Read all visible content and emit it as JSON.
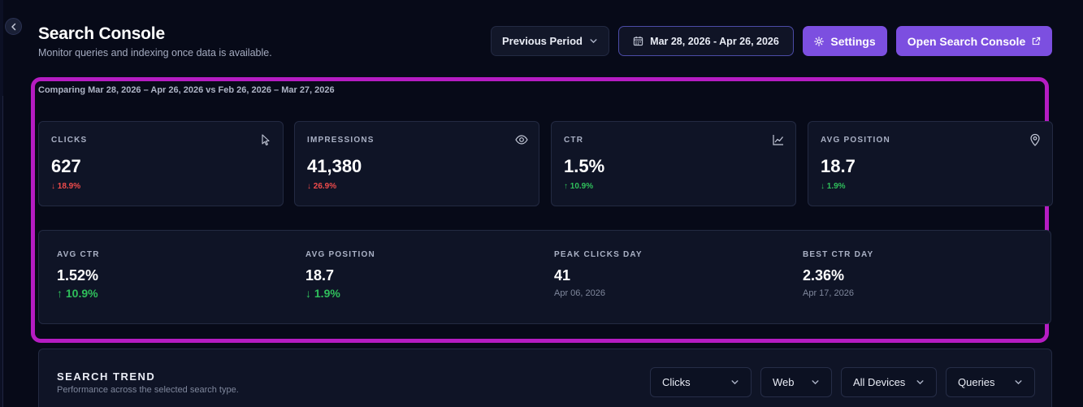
{
  "header": {
    "title": "Search Console",
    "subtitle": "Monitor queries and indexing once data is available."
  },
  "toolbar": {
    "period_label": "Previous Period",
    "date_range": "Mar 28, 2026 - Apr 26, 2026",
    "settings_label": "Settings",
    "open_gsc_label": "Open Search Console"
  },
  "comparison_text": "Comparing Mar 28, 2026 – Apr 26, 2026 vs Feb 26, 2026 – Mar 27, 2026",
  "kpis": [
    {
      "label": "CLICKS",
      "value": "627",
      "change": "↓ 18.9%",
      "direction": "down",
      "icon": "cursor-icon"
    },
    {
      "label": "IMPRESSIONS",
      "value": "41,380",
      "change": "↓ 26.9%",
      "direction": "down",
      "icon": "eye-icon"
    },
    {
      "label": "CTR",
      "value": "1.5%",
      "change": "↑ 10.9%",
      "direction": "up",
      "icon": "line-chart-icon"
    },
    {
      "label": "AVG POSITION",
      "value": "18.7",
      "change": "↓ 1.9%",
      "direction": "up",
      "icon": "map-pin-icon"
    }
  ],
  "summary": {
    "avg_ctr": {
      "label": "AVG CTR",
      "value": "1.52%",
      "change": "↑ 10.9%"
    },
    "avg_position": {
      "label": "AVG POSITION",
      "value": "18.7",
      "change": "↓ 1.9%"
    },
    "peak_clicks": {
      "label": "PEAK CLICKS DAY",
      "value": "41",
      "date": "Apr 06, 2026"
    },
    "best_ctr": {
      "label": "BEST CTR DAY",
      "value": "2.36%",
      "date": "Apr 17, 2026"
    }
  },
  "trend": {
    "title": "SEARCH TREND",
    "subtitle": "Performance across the selected search type.",
    "filters": [
      "Clicks",
      "Web",
      "All Devices",
      "Queries"
    ]
  },
  "colors": {
    "accent": "#7c4fe0",
    "highlight": "#b51cc2",
    "negative": "#ef4b4b",
    "positive": "#2fbf5b",
    "background": "#070a18"
  }
}
